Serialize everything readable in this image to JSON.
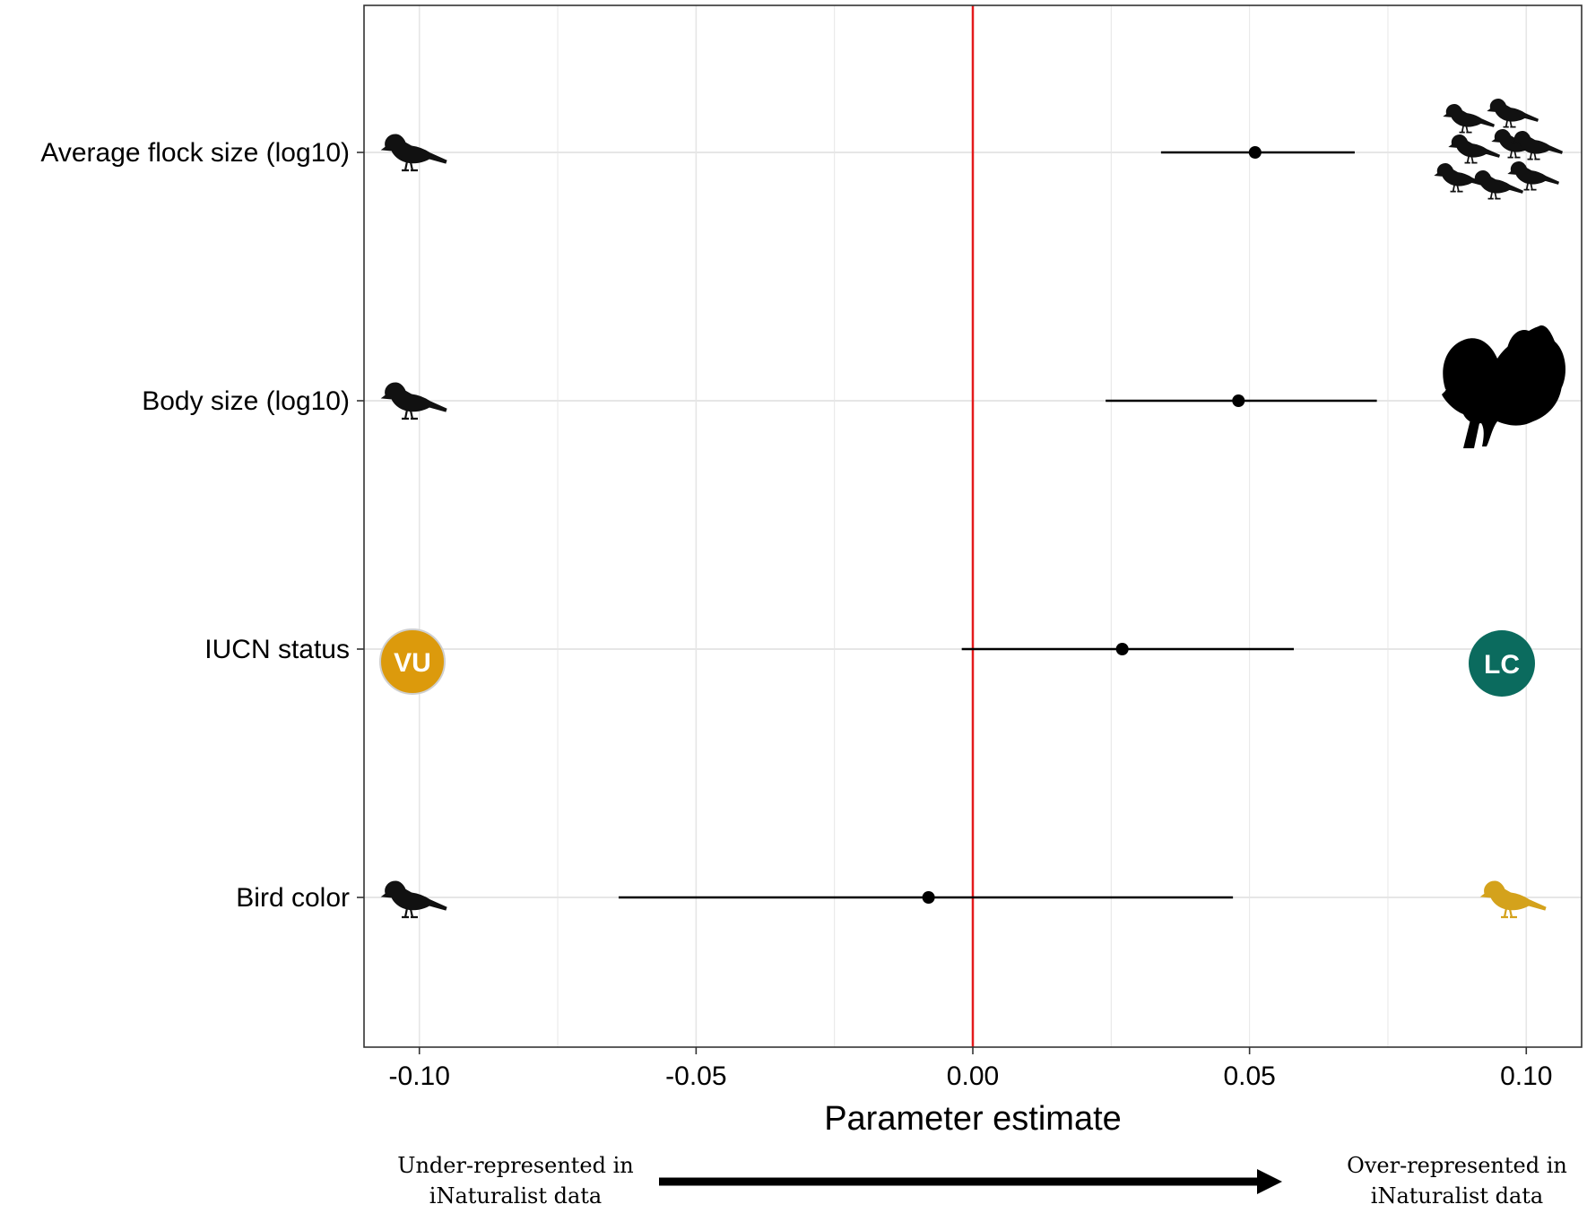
{
  "chart_data": {
    "type": "forest",
    "title": "",
    "xlabel": "Parameter estimate",
    "ylabel": "",
    "xlim": [
      -0.11,
      0.11
    ],
    "x_ticks": [
      -0.1,
      -0.05,
      0.0,
      0.05,
      0.1
    ],
    "x_tick_labels": [
      "-0.10",
      "-0.05",
      "0.00",
      "0.05",
      "0.10"
    ],
    "reference_line": {
      "x": 0.0,
      "color": "#e41a1c"
    },
    "grid": true,
    "rows": [
      {
        "label": "Average flock size (log10)",
        "estimate": 0.051,
        "lower": 0.034,
        "upper": 0.069,
        "left_icon": "single-bird-icon",
        "right_icon": "flock-of-birds-icon"
      },
      {
        "label": "Body size (log10)",
        "estimate": 0.048,
        "lower": 0.024,
        "upper": 0.073,
        "left_icon": "small-bird-icon",
        "right_icon": "turkey-icon"
      },
      {
        "label": "IUCN status",
        "estimate": 0.027,
        "lower": -0.002,
        "upper": 0.058,
        "left_badge": "VU",
        "right_badge": "LC"
      },
      {
        "label": "Bird color",
        "estimate": -0.008,
        "lower": -0.064,
        "upper": 0.047,
        "left_icon": "dark-bird-icon",
        "right_icon": "yellow-bird-icon"
      }
    ],
    "colors": {
      "vu_badge": "#dc9a0c",
      "lc_badge": "#0b6b5e",
      "yellow_bird": "#d4a21c",
      "silhouette": "#111111",
      "gridline": "#e6e6e6"
    }
  },
  "captions": {
    "left": "Under-represented in iNaturalist data",
    "right": "Over-represented in iNaturalist data"
  }
}
